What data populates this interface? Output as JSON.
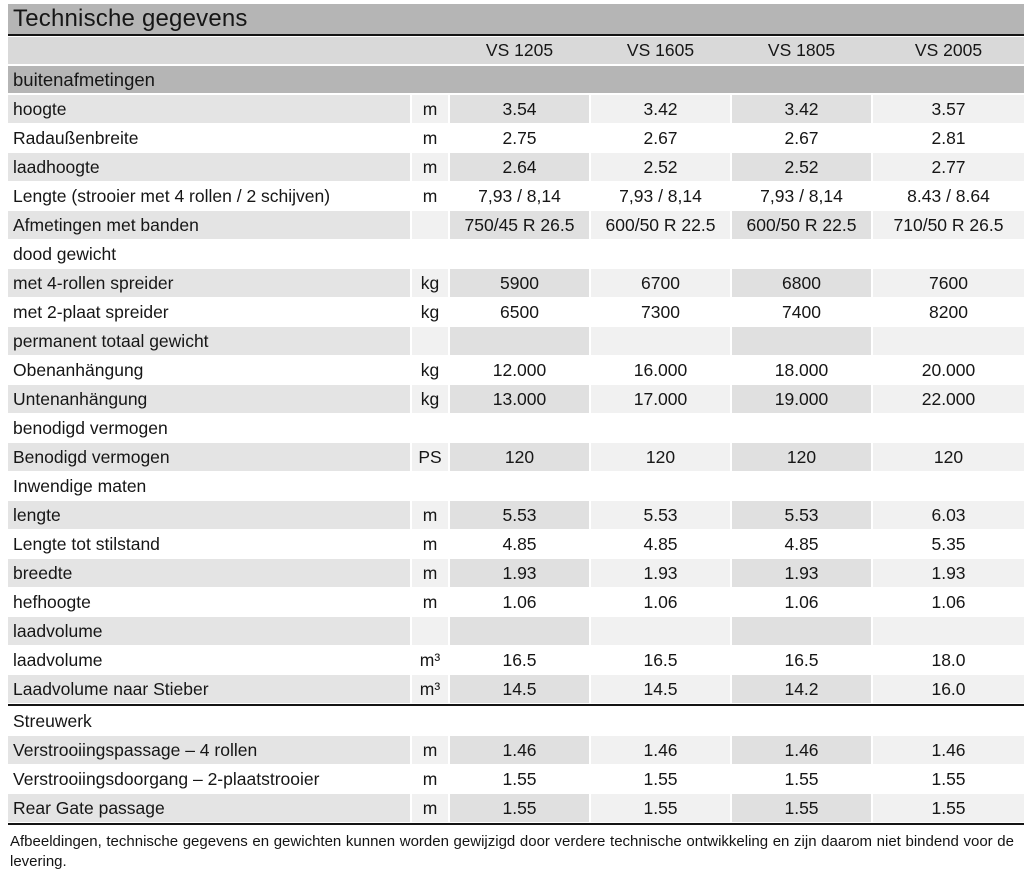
{
  "page": {
    "title": "Technische gegevens",
    "footnote": "Afbeeldingen, technische gegevens en gewichten kunnen worden gewijzigd door verdere technische ontwikkeling en zijn daarom niet bindend voor de levering."
  },
  "columns": [
    "VS 1205",
    "VS 1605",
    "VS 1805",
    "VS 2005"
  ],
  "colors": {
    "section_bar": "#b5b5b5",
    "column_header": "#d9d9d9",
    "stripe_label": "#e4e4e4",
    "stripe_value_dark": "#e0e0e0",
    "stripe_value_light": "#f1f1f1",
    "rule": "#141414",
    "text": "#161616"
  },
  "rows": [
    {
      "type": "bar",
      "label": "buitenafmetingen"
    },
    {
      "type": "data",
      "striped": true,
      "label": "hoogte",
      "unit": "m",
      "values": [
        "3.54",
        "3.42",
        "3.42",
        "3.57"
      ]
    },
    {
      "type": "data",
      "striped": false,
      "label": "Radaußenbreite",
      "unit": "m",
      "values": [
        "2.75",
        "2.67",
        "2.67",
        "2.81"
      ]
    },
    {
      "type": "data",
      "striped": true,
      "label": "laadhoogte",
      "unit": "m",
      "values": [
        "2.64",
        "2.52",
        "2.52",
        "2.77"
      ]
    },
    {
      "type": "data",
      "striped": false,
      "label": "Lengte (strooier met 4 rollen / 2 schijven)",
      "unit": "m",
      "values": [
        "7,93 / 8,14",
        "7,93 / 8,14",
        "7,93 / 8,14",
        "8.43 / 8.64"
      ]
    },
    {
      "type": "data",
      "striped": true,
      "label": "Afmetingen met banden",
      "unit": "",
      "values": [
        "750/45 R 26.5",
        "600/50 R 22.5",
        "600/50 R 22.5",
        "710/50 R 26.5"
      ]
    },
    {
      "type": "section",
      "striped": false,
      "label": "dood gewicht",
      "unit": "",
      "values": [
        "",
        "",
        "",
        ""
      ]
    },
    {
      "type": "data",
      "striped": true,
      "label": "met 4-rollen spreider",
      "unit": "kg",
      "values": [
        "5900",
        "6700",
        "6800",
        "7600"
      ]
    },
    {
      "type": "data",
      "striped": false,
      "label": "met 2-plaat spreider",
      "unit": "kg",
      "values": [
        "6500",
        "7300",
        "7400",
        "8200"
      ]
    },
    {
      "type": "section",
      "striped": true,
      "label": "permanent totaal gewicht",
      "unit": "",
      "values": [
        "",
        "",
        "",
        ""
      ]
    },
    {
      "type": "data",
      "striped": false,
      "label": "Obenanhängung",
      "unit": "kg",
      "values": [
        "12.000",
        "16.000",
        "18.000",
        "20.000"
      ]
    },
    {
      "type": "data",
      "striped": true,
      "label": "Untenanhängung",
      "unit": "kg",
      "values": [
        "13.000",
        "17.000",
        "19.000",
        "22.000"
      ]
    },
    {
      "type": "section",
      "striped": false,
      "label": "benodigd vermogen",
      "unit": "",
      "values": [
        "",
        "",
        "",
        ""
      ]
    },
    {
      "type": "data",
      "striped": true,
      "label": "Benodigd vermogen",
      "unit": "PS",
      "values": [
        "120",
        "120",
        "120",
        "120"
      ]
    },
    {
      "type": "section",
      "striped": false,
      "label": "Inwendige maten",
      "unit": "",
      "values": [
        "",
        "",
        "",
        ""
      ]
    },
    {
      "type": "data",
      "striped": true,
      "label": "lengte",
      "unit": "m",
      "values": [
        "5.53",
        "5.53",
        "5.53",
        "6.03"
      ]
    },
    {
      "type": "data",
      "striped": false,
      "label": "Lengte tot stilstand",
      "unit": "m",
      "values": [
        "4.85",
        "4.85",
        "4.85",
        "5.35"
      ]
    },
    {
      "type": "data",
      "striped": true,
      "label": "breedte",
      "unit": "m",
      "values": [
        "1.93",
        "1.93",
        "1.93",
        "1.93"
      ]
    },
    {
      "type": "data",
      "striped": false,
      "label": "hefhoogte",
      "unit": "m",
      "values": [
        "1.06",
        "1.06",
        "1.06",
        "1.06"
      ]
    },
    {
      "type": "section",
      "striped": true,
      "label": "laadvolume",
      "unit": "",
      "values": [
        "",
        "",
        "",
        ""
      ]
    },
    {
      "type": "data",
      "striped": false,
      "label": "laadvolume",
      "unit": "m³",
      "values": [
        "16.5",
        "16.5",
        "16.5",
        "18.0"
      ]
    },
    {
      "type": "data",
      "striped": true,
      "label": "Laadvolume naar Stieber",
      "unit": "m³",
      "values": [
        "14.5",
        "14.5",
        "14.2",
        "16.0"
      ]
    },
    {
      "type": "section",
      "striped": false,
      "label": "Streuwerk",
      "unit": "",
      "values": [
        "",
        "",
        "",
        ""
      ],
      "rule_before": true
    },
    {
      "type": "data",
      "striped": true,
      "label": "Verstrooiingspassage – 4 rollen",
      "unit": "m",
      "values": [
        "1.46",
        "1.46",
        "1.46",
        "1.46"
      ]
    },
    {
      "type": "data",
      "striped": false,
      "label": "Verstrooiingsdoorgang – 2-plaatstrooier",
      "unit": "m",
      "values": [
        "1.55",
        "1.55",
        "1.55",
        "1.55"
      ]
    },
    {
      "type": "data",
      "striped": true,
      "label": "Rear Gate passage",
      "unit": "m",
      "values": [
        "1.55",
        "1.55",
        "1.55",
        "1.55"
      ]
    }
  ]
}
